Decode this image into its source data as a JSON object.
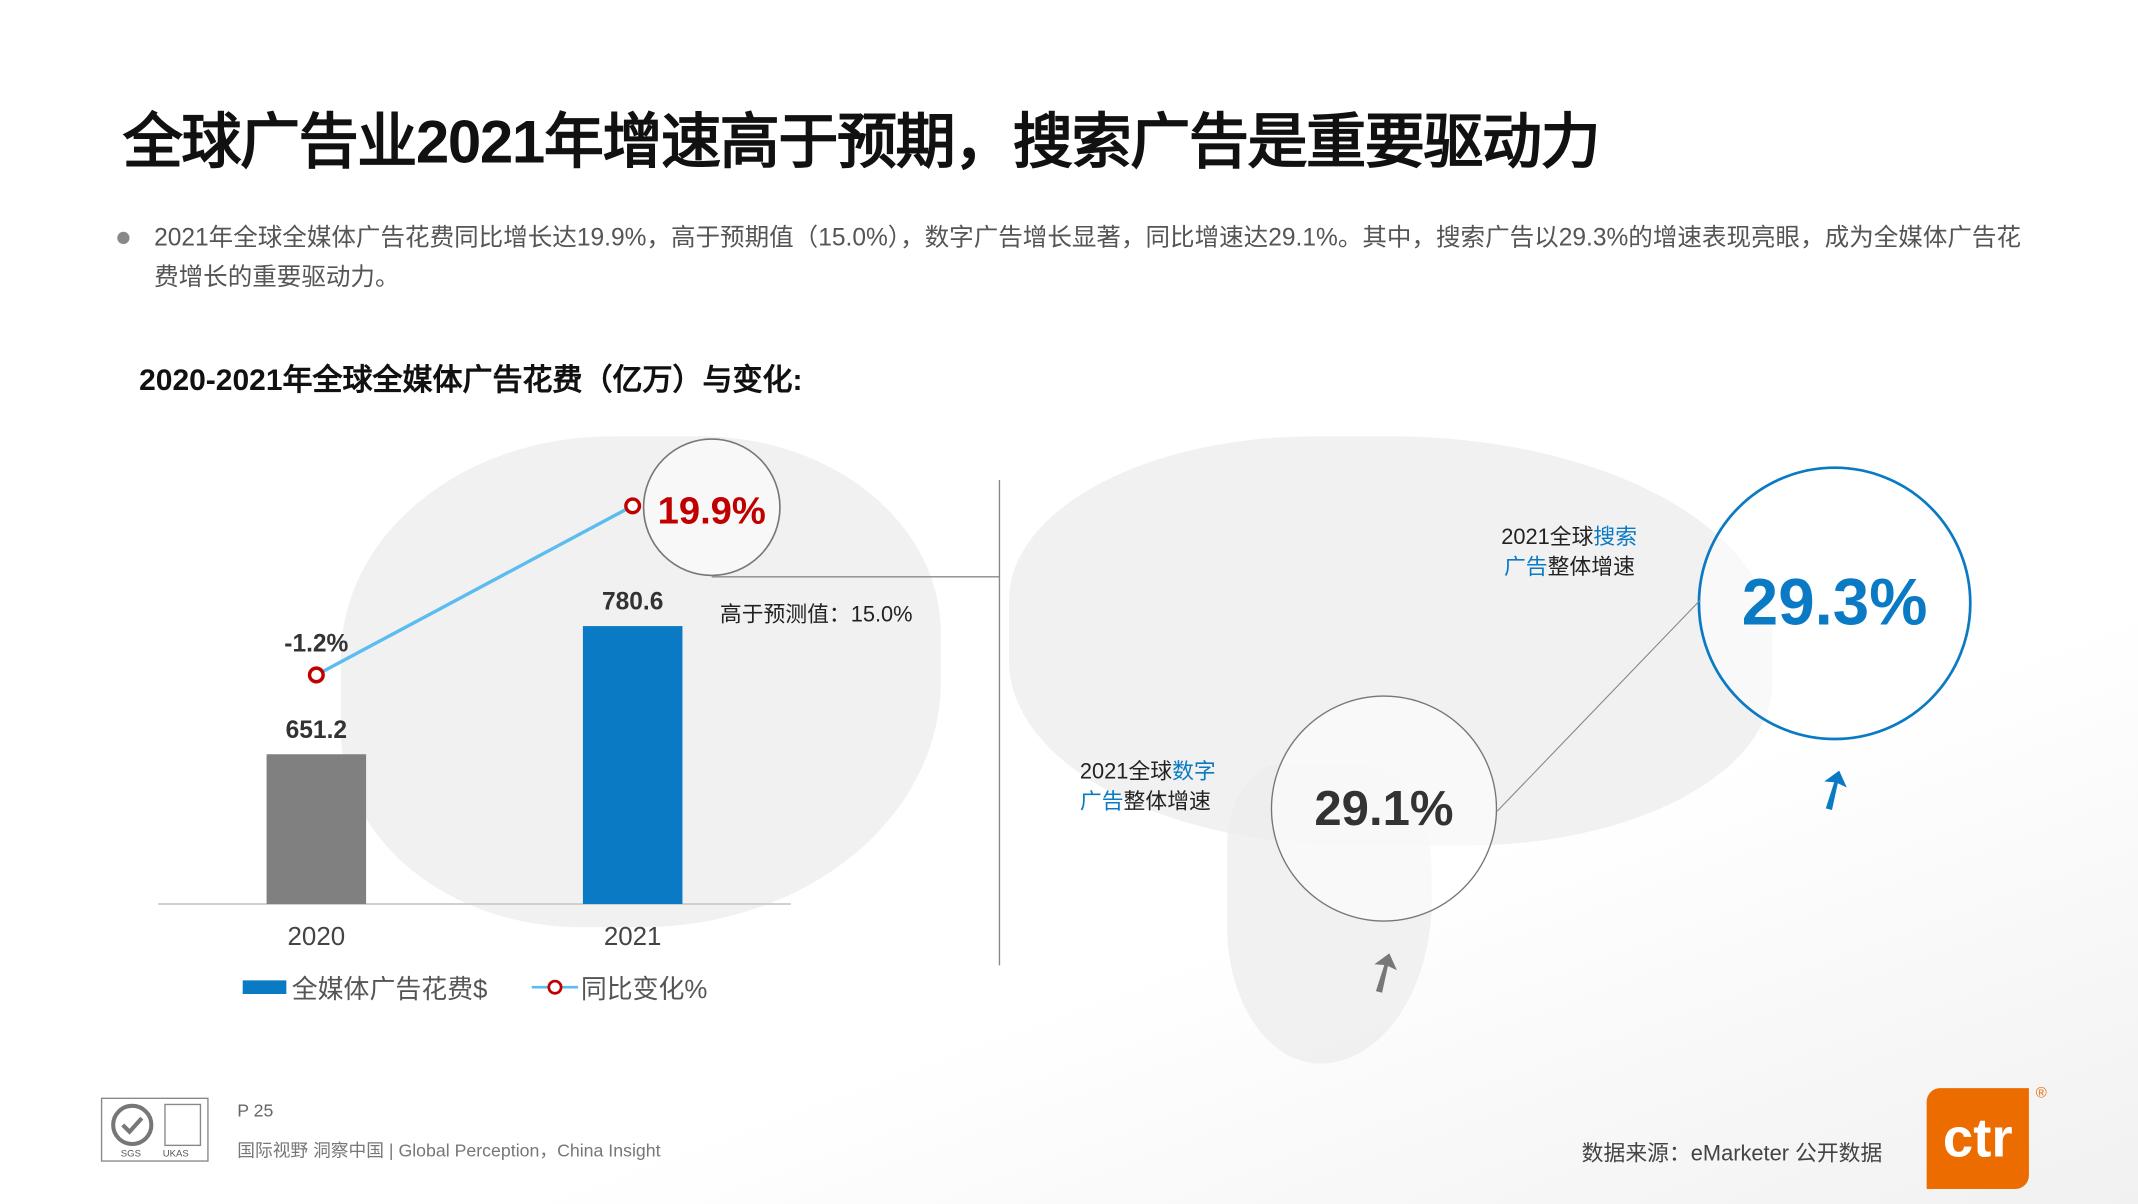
{
  "title": "全球广告业2021年增速高于预期，搜索广告是重要驱动力",
  "bullet": "2021年全球全媒体广告花费同比增长达19.9%，高于预期值（15.0%），数字广告增长显著，同比增速达29.1%。其中，搜索广告以29.3%的增速表现亮眼，成为全媒体广告花费增长的重要驱动力。",
  "chart_data": {
    "type": "bar+line",
    "title": "2020-2021年全球全媒体广告花费（亿万）与变化:",
    "categories": [
      "2020",
      "2021"
    ],
    "series": [
      {
        "name": "全媒体广告花费$",
        "type": "bar",
        "values": [
          651.2,
          780.6
        ],
        "labels": [
          "651.2",
          "780.6"
        ],
        "colors": [
          "#808080",
          "#0a7ac4"
        ]
      },
      {
        "name": "同比变化%",
        "type": "line",
        "values": [
          -1.2,
          19.9
        ],
        "labels": [
          "-1.2%",
          "19.9%"
        ],
        "color": "#5bbcf0",
        "marker_color": "#c00000"
      }
    ],
    "annotation": "高于预测值：15.0%"
  },
  "right": {
    "digital_label_a": "2021全球",
    "digital_label_b": "数字",
    "digital_label_c": "广告",
    "digital_label_d": "整体增速",
    "digital_value": "29.1%",
    "search_label_a": "2021全球",
    "search_label_b": "搜索",
    "search_label_c": "广告",
    "search_label_d": "整体增速",
    "search_value": "29.3%"
  },
  "footer": {
    "page": "P 25",
    "slogan": "国际视野  洞察中国 |  Global Perception，China Insight",
    "source": "数据来源：eMarketer 公开数据",
    "logo": "ctr",
    "cert": "SGS UKAS"
  },
  "colors": {
    "accent": "#0a7ac4",
    "highlight": "#c00000",
    "logo": "#ec6c00"
  }
}
